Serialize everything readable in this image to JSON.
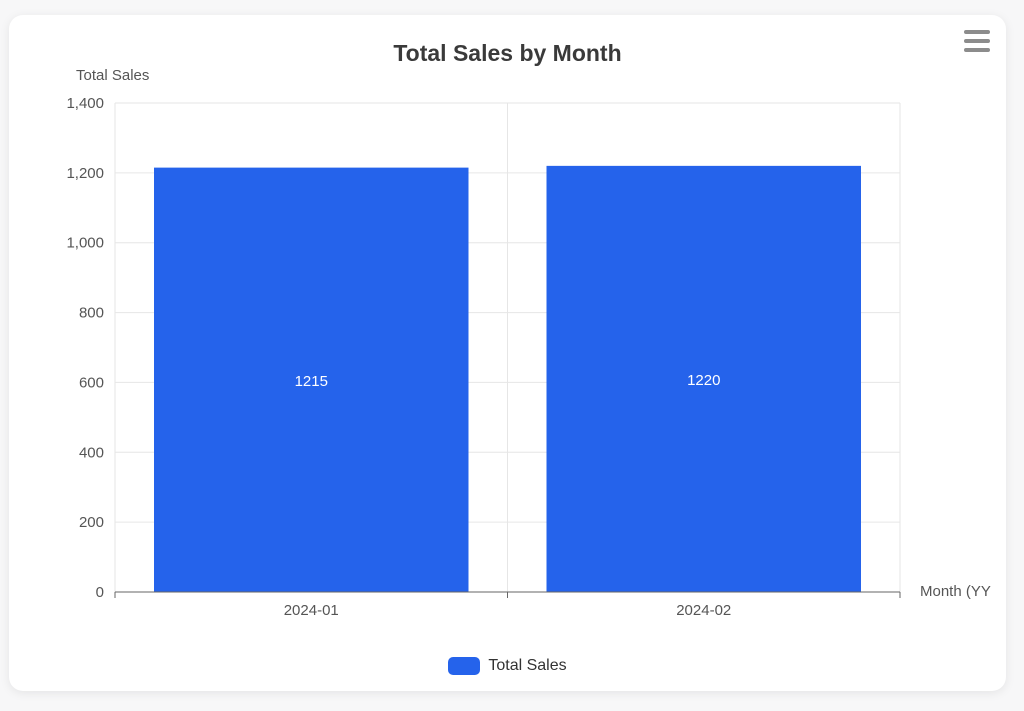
{
  "menu_icon": "hamburger-menu-icon",
  "colors": {
    "bar": "#2563eb",
    "grid": "#e6e6e6",
    "axis": "#666666",
    "text": "#555555",
    "bar_label": "#ffffff"
  },
  "chart_data": {
    "type": "bar",
    "title": "Total Sales by Month",
    "ylabel": "Total Sales",
    "xlabel": "Month (YY",
    "categories": [
      "2024-01",
      "2024-02"
    ],
    "series": [
      {
        "name": "Total Sales",
        "values": [
          1215,
          1220
        ]
      }
    ],
    "ylim": [
      0,
      1400
    ],
    "yticks": [
      0,
      200,
      400,
      600,
      800,
      1000,
      1200,
      1400
    ],
    "ytick_labels": [
      "0",
      "200",
      "400",
      "600",
      "800",
      "1,000",
      "1,200",
      "1,400"
    ],
    "grid": true,
    "legend": "bottom-center"
  }
}
